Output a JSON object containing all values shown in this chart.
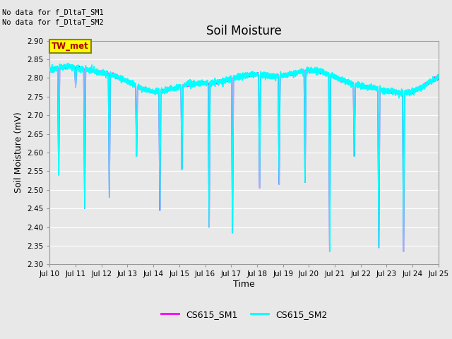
{
  "title": "Soil Moisture",
  "ylabel": "Soil Moisture (mV)",
  "xlabel": "Time",
  "ylim": [
    2.3,
    2.9
  ],
  "yticks": [
    2.3,
    2.35,
    2.4,
    2.45,
    2.5,
    2.55,
    2.6,
    2.65,
    2.7,
    2.75,
    2.8,
    2.85,
    2.9
  ],
  "xtick_labels": [
    "Jul 10",
    "Jul 11",
    "Jul 12",
    "Jul 13",
    "Jul 14",
    "Jul 15",
    "Jul 16",
    "Jul 17",
    "Jul 18",
    "Jul 19",
    "Jul 20",
    "Jul 21",
    "Jul 22",
    "Jul 23",
    "Jul 24",
    "Jul 25"
  ],
  "color_sm1": "#FF00FF",
  "color_sm2": "#00FFFF",
  "color_twmet_bg": "#FFFF00",
  "color_twmet_text": "#AA0000",
  "color_twmet_border": "#888800",
  "no_data_text1": "No data for f_DltaT_SM1",
  "no_data_text2": "No data for f_DltaT_SM2",
  "twmet_label": "TW_met",
  "legend_sm1": "CS615_SM1",
  "legend_sm2": "CS615_SM2",
  "plot_bg_color": "#E8E8E8",
  "fig_bg_color": "#E8E8E8",
  "grid_color": "#FFFFFF",
  "n_days": 15,
  "dip_times": [
    0.35,
    1.0,
    1.35,
    2.3,
    3.35,
    4.25,
    5.1,
    6.15,
    7.05,
    8.1,
    8.85,
    9.85,
    10.8,
    11.75,
    12.7,
    13.65
  ],
  "dip_depths": [
    2.54,
    2.775,
    2.45,
    2.48,
    2.59,
    2.445,
    2.555,
    2.4,
    2.385,
    2.505,
    2.515,
    2.52,
    2.335,
    2.59,
    2.345,
    2.335
  ]
}
